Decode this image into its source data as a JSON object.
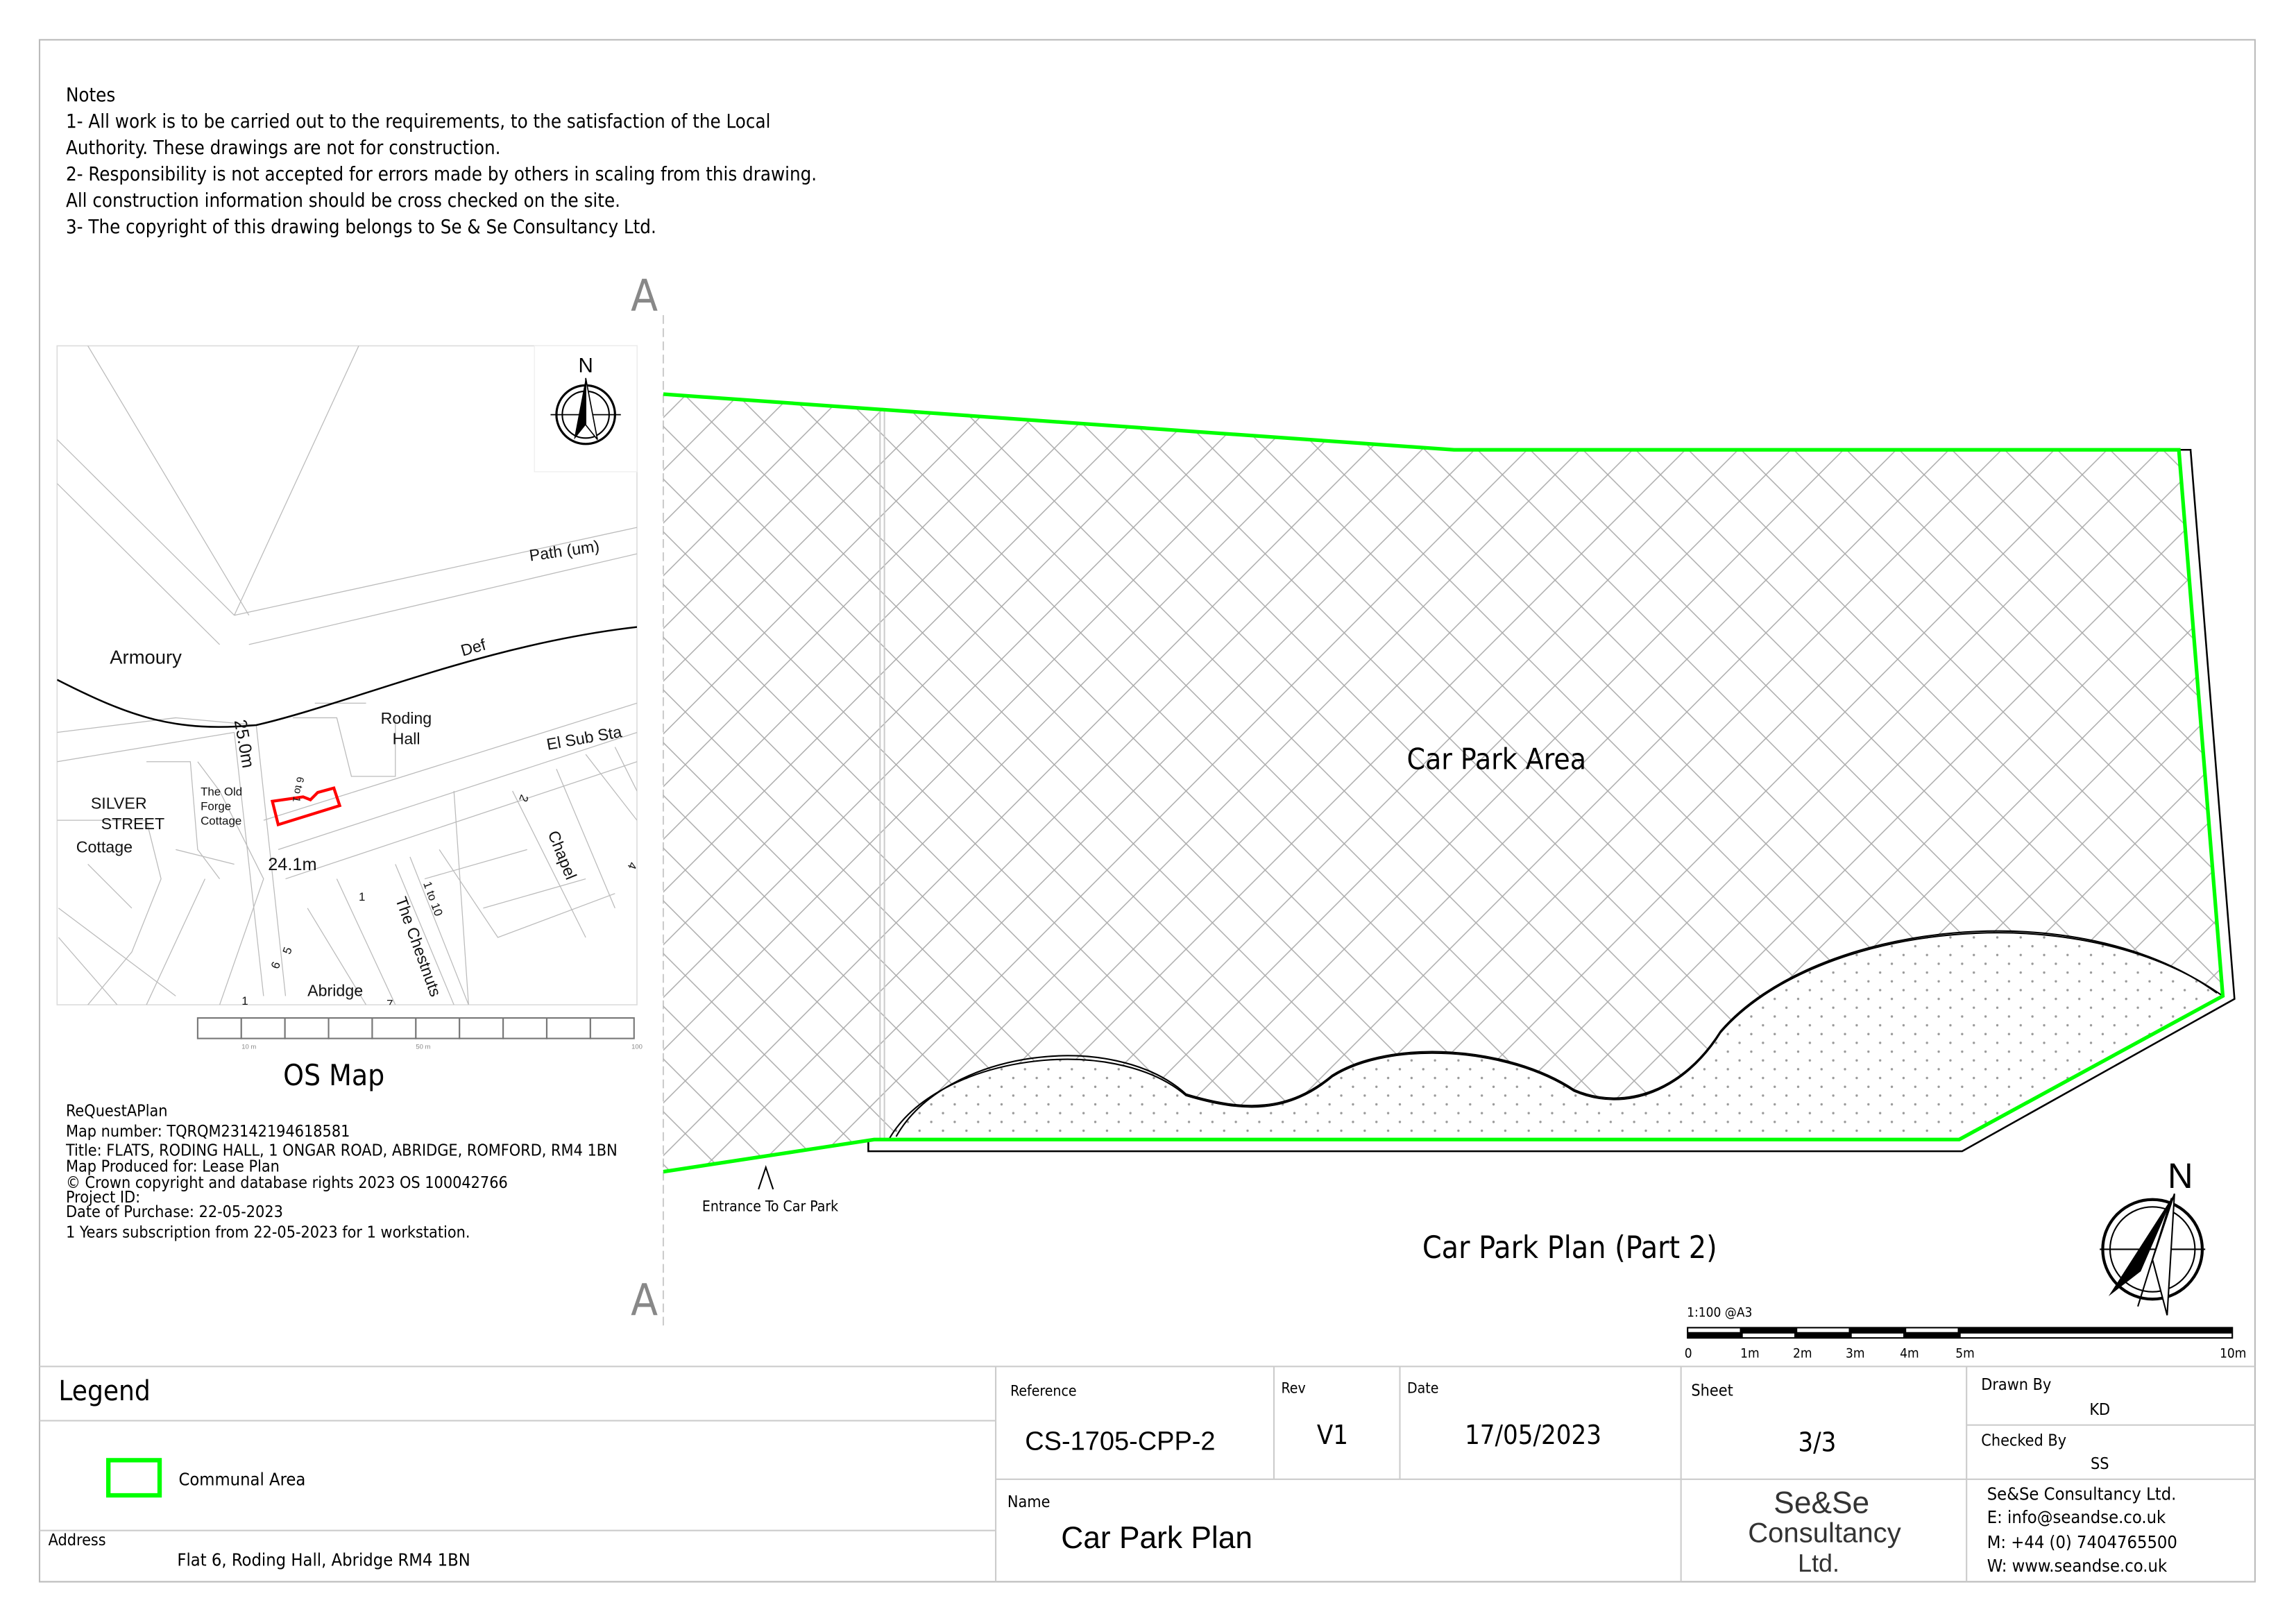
{
  "notes": {
    "heading": "Notes",
    "lines": [
      "1- All work is to be carried out to the requirements, to the satisfaction of the Local",
      "Authority. These drawings are not for construction.",
      "2- Responsibility is not accepted for errors made by others in scaling from this drawing.",
      "All construction information should be cross checked on the site.",
      "3- The copyright of this drawing belongs to Se & Se Consultancy Ltd."
    ]
  },
  "section_marks": [
    "A",
    "A"
  ],
  "os_map": {
    "north_label": "N",
    "labels": {
      "path": "Path (um)",
      "armoury": "Armoury",
      "def": "Def",
      "roding": "Roding",
      "hall": "Hall",
      "el_sub_sta": "El Sub Sta",
      "height_25": "25.0m",
      "height_24": "24.1m",
      "silver": "SILVER",
      "street": "STREET",
      "cottage": "Cottage",
      "old": "The Old",
      "forge": "Forge",
      "forge_cottage": "Cottage",
      "chapel": "Chapel",
      "chestnuts": "The Chestnuts",
      "one_to_ten": "1 to 10",
      "abridge": "Abridge",
      "n1": "1",
      "n2": "2",
      "n4": "4",
      "n5": "5",
      "n6": "6",
      "n7": "7",
      "n1b": "1",
      "n69": "6 to 1"
    },
    "scale_labels": [
      "10 m",
      "50 m",
      "100"
    ],
    "caption": "OS Map",
    "highlight_color": "#ff0000"
  },
  "map_info": [
    "ReQuestAPlan",
    "Map number: TQRQM23142194618581",
    "Title: FLATS, RODING HALL, 1 ONGAR ROAD, ABRIDGE, ROMFORD, RM4 1BN",
    "Map Produced for: Lease Plan",
    "© Crown copyright and database rights 2023 OS 100042766",
    "Project ID:",
    "Date of Purchase: 22-05-2023",
    "1 Years subscription from 22-05-2023 for 1 workstation."
  ],
  "plan": {
    "area_label": "Car Park Area",
    "entrance_label": "Entrance To Car Park",
    "title": "Car Park Plan (Part 2)",
    "north_label": "N",
    "boundary_color": "#00ff00",
    "scale_text": "1:100 @A3",
    "scale_labels": [
      "0",
      "1m",
      "2m",
      "3m",
      "4m",
      "5m",
      "10m"
    ]
  },
  "legend": {
    "title": "Legend",
    "items": [
      {
        "label": "Communal Area",
        "color": "#00ff00"
      }
    ],
    "address_label": "Address",
    "address_value": "Flat 6, Roding Hall, Abridge RM4 1BN"
  },
  "title_block": {
    "reference_label": "Reference",
    "reference_value": "CS-1705-CPP-2",
    "rev_label": "Rev",
    "rev_value": "V1",
    "date_label": "Date",
    "date_value": "17/05/2023",
    "sheet_label": "Sheet",
    "sheet_value": "3/3",
    "drawn_by_label": "Drawn By",
    "drawn_by_value": "KD",
    "checked_by_label": "Checked By",
    "checked_by_value": "SS",
    "name_label": "Name",
    "name_value": "Car Park  Plan",
    "logo": [
      "Se&Se",
      "Consultancy",
      "Ltd."
    ],
    "contact": [
      "Se&Se Consultancy Ltd.",
      "E: info@seandse.co.uk",
      "M: +44 (0) 7404765500",
      "W: www.seandse.co.uk"
    ]
  }
}
